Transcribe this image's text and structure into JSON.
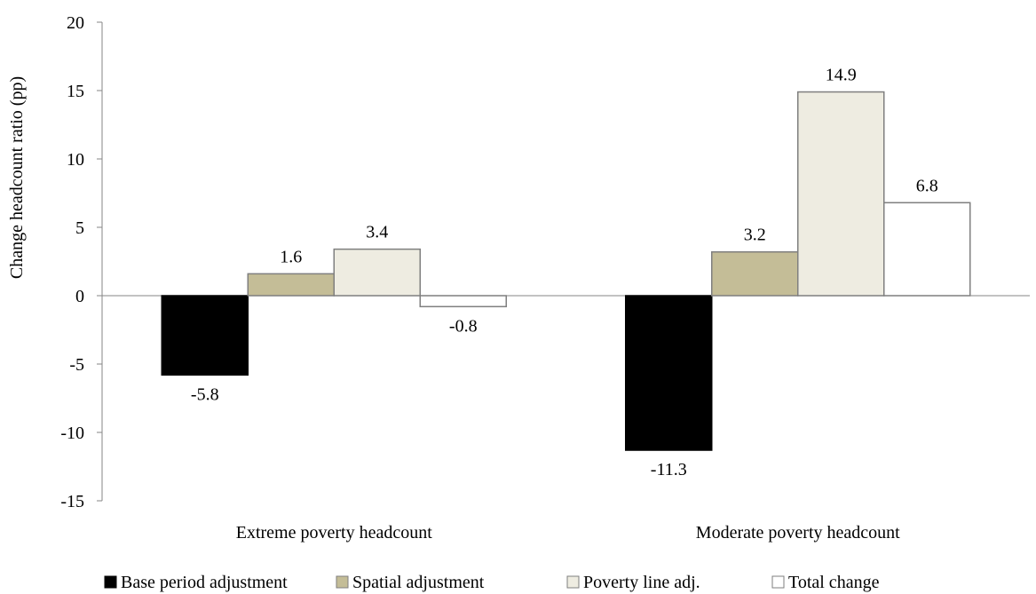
{
  "chart_data": {
    "type": "bar",
    "title": "",
    "xlabel": "",
    "ylabel": "Change headcount ratio (pp)",
    "ylim": [
      -15,
      20
    ],
    "yticks": [
      20,
      15,
      10,
      5,
      0,
      -5,
      -10,
      -15
    ],
    "categories": [
      "Extreme poverty headcount",
      "Moderate poverty headcount"
    ],
    "series": [
      {
        "name": "Base period adjustment",
        "values": [
          -5.8,
          -11.3
        ],
        "labels": [
          "-5.8",
          "-11.3"
        ],
        "color": "#000000",
        "stroke": "#000000"
      },
      {
        "name": "Spatial adjustment",
        "values": [
          1.6,
          3.2
        ],
        "labels": [
          "1.6",
          "3.2"
        ],
        "color": "#c4bd97",
        "stroke": "#7f7f7f"
      },
      {
        "name": "Poverty line adj.",
        "values": [
          3.4,
          14.9
        ],
        "labels": [
          "3.4",
          "14.9"
        ],
        "color": "#eeece1",
        "stroke": "#7f7f7f"
      },
      {
        "name": "Total change",
        "values": [
          -0.8,
          6.8
        ],
        "labels": [
          "-0.8",
          "6.8"
        ],
        "color": "#ffffff",
        "stroke": "#7f7f7f"
      }
    ],
    "grid": false,
    "legend": "bottom"
  }
}
